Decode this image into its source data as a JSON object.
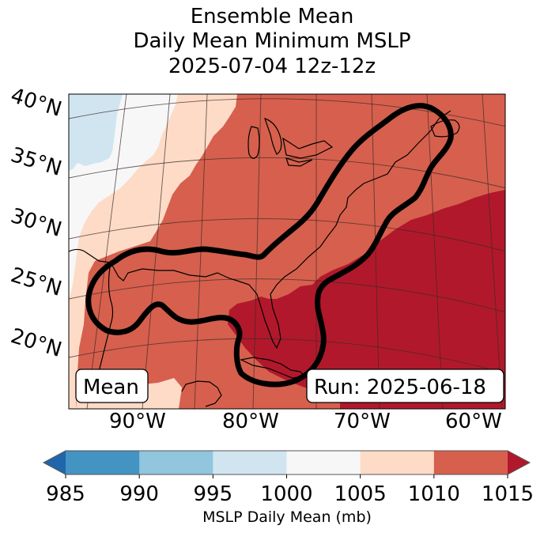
{
  "chart_data": {
    "type": "heatmap",
    "title_lines": [
      "Ensemble Mean",
      "Daily Mean Minimum MSLP",
      "2025-07-04 12z-12z"
    ],
    "map": {
      "projection": "conic",
      "lat_labels": [
        "40°N",
        "35°N",
        "30°N",
        "25°N",
        "20°N"
      ],
      "lon_labels": [
        "90°W",
        "80°W",
        "70°W",
        "60°W"
      ],
      "extent_lon": [
        -95,
        -58
      ],
      "extent_lat": [
        17,
        42
      ],
      "gridlines": true,
      "coastlines": true,
      "contour_outline": "thick black closed contour spanning Gulf of Mexico, Florida, US East Coast to Nova Scotia"
    },
    "regions": [
      {
        "name": "upper-left interior",
        "range": "995-1000"
      },
      {
        "name": "central plains band",
        "range": "1000-1005"
      },
      {
        "name": "western band",
        "range": "1005-1010"
      },
      {
        "name": "eastern US / Gulf",
        "range": "1010-1015"
      },
      {
        "name": "western Atlantic / Florida",
        "range": ">1015"
      }
    ],
    "annotations": {
      "left_box": "Mean",
      "right_box": "Run: 2025-06-18"
    },
    "colorbar": {
      "label": "MSLP Daily Mean (mb)",
      "ticks": [
        "985",
        "990",
        "995",
        "1000",
        "1005",
        "1010",
        "1015"
      ],
      "levels": [
        985,
        990,
        995,
        1000,
        1005,
        1010,
        1015
      ],
      "extend": "both",
      "colors": {
        "under": "#2166ac",
        "985-990": "#4393c3",
        "990-995": "#92c5de",
        "995-1000": "#d1e5f0",
        "1000-1005": "#f7f7f7",
        "1005-1010": "#fddbc7",
        "1010-1015": "#d6604d",
        "over": "#b2182b"
      }
    }
  }
}
